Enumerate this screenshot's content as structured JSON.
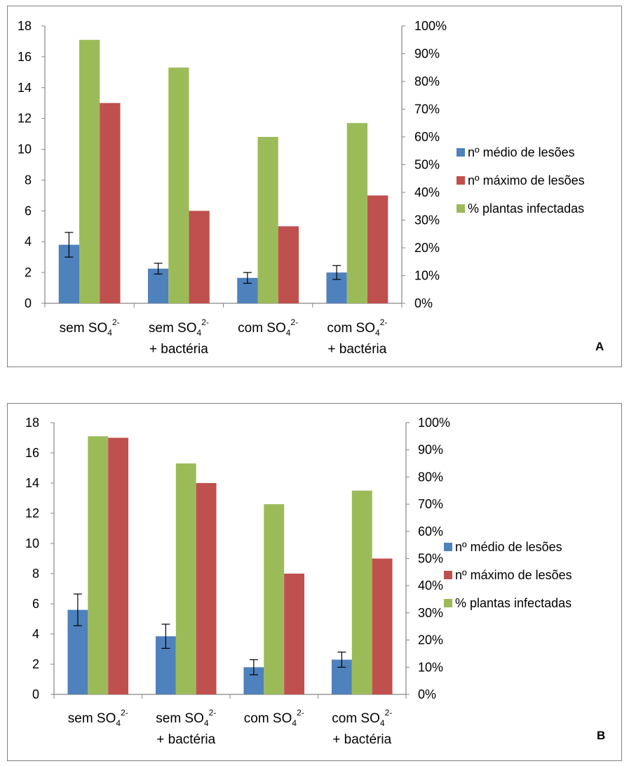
{
  "chart_data": [
    {
      "type": "bar",
      "panel_label": "A",
      "categories": [
        {
          "lines": [
            {
              "base": "sem SO",
              "sub": "4",
              "sup": "2-"
            }
          ]
        },
        {
          "lines": [
            {
              "base": "sem SO",
              "sub": "4",
              "sup": "2-"
            },
            {
              "base": "+ bactéria",
              "sub": "",
              "sup": ""
            }
          ]
        },
        {
          "lines": [
            {
              "base": "com SO",
              "sub": "4",
              "sup": "2-"
            }
          ]
        },
        {
          "lines": [
            {
              "base": "com SO",
              "sub": "4",
              "sup": "2-"
            },
            {
              "base": "+ bactéria",
              "sub": "",
              "sup": ""
            }
          ]
        }
      ],
      "series": [
        {
          "name": "nº médio de lesões",
          "axis": "left",
          "color": "#4f81bd",
          "values": [
            3.8,
            2.25,
            1.65,
            2.0
          ],
          "error": [
            0.8,
            0.35,
            0.35,
            0.45
          ]
        },
        {
          "name": "% plantas infectadas",
          "axis": "right",
          "color": "#9bbb59",
          "values": [
            95,
            85,
            60,
            65
          ]
        },
        {
          "name": "nº máximo de lesões",
          "axis": "left",
          "color": "#c0504d",
          "values": [
            13,
            6,
            5,
            7
          ]
        }
      ],
      "left_axis": {
        "min": 0,
        "max": 18,
        "ticks": [
          "0",
          "2",
          "4",
          "6",
          "8",
          "10",
          "12",
          "14",
          "16",
          "18"
        ]
      },
      "right_axis": {
        "min": 0,
        "max": 100,
        "ticks": [
          "0%",
          "10%",
          "20%",
          "30%",
          "40%",
          "50%",
          "60%",
          "70%",
          "80%",
          "90%",
          "100%"
        ]
      },
      "legend": [
        {
          "label": "nº médio de lesões",
          "color": "#4f81bd"
        },
        {
          "label": "nº máximo de lesões",
          "color": "#c0504d"
        },
        {
          "label": "% plantas infectadas",
          "color": "#9bbb59"
        }
      ],
      "legend_position": "right",
      "grid": false
    },
    {
      "type": "bar",
      "panel_label": "B",
      "categories": [
        {
          "lines": [
            {
              "base": "sem SO",
              "sub": "4",
              "sup": "2-"
            }
          ]
        },
        {
          "lines": [
            {
              "base": "sem SO",
              "sub": "4",
              "sup": "2-"
            },
            {
              "base": "+ bactéria",
              "sub": "",
              "sup": ""
            }
          ]
        },
        {
          "lines": [
            {
              "base": "com SO",
              "sub": "4",
              "sup": "2-"
            }
          ]
        },
        {
          "lines": [
            {
              "base": "com SO",
              "sub": "4",
              "sup": "2-"
            },
            {
              "base": "+ bactéria",
              "sub": "",
              "sup": ""
            }
          ]
        }
      ],
      "series": [
        {
          "name": "nº médio de lesões",
          "axis": "left",
          "color": "#4f81bd",
          "values": [
            5.6,
            3.85,
            1.8,
            2.3
          ],
          "error": [
            1.05,
            0.8,
            0.5,
            0.5
          ]
        },
        {
          "name": "% plantas infectadas",
          "axis": "right",
          "color": "#9bbb59",
          "values": [
            95,
            85,
            70,
            75
          ]
        },
        {
          "name": "nº máximo de lesões",
          "axis": "left",
          "color": "#c0504d",
          "values": [
            17,
            14,
            8,
            9
          ]
        }
      ],
      "left_axis": {
        "min": 0,
        "max": 18,
        "ticks": [
          "0",
          "2",
          "4",
          "6",
          "8",
          "10",
          "12",
          "14",
          "16",
          "18"
        ]
      },
      "right_axis": {
        "min": 0,
        "max": 100,
        "ticks": [
          "0%",
          "10%",
          "20%",
          "30%",
          "40%",
          "50%",
          "60%",
          "70%",
          "80%",
          "90%",
          "100%"
        ]
      },
      "legend": [
        {
          "label": "nº médio de lesões",
          "color": "#4f81bd"
        },
        {
          "label": "nº máximo de lesões",
          "color": "#c0504d"
        },
        {
          "label": "% plantas infectadas",
          "color": "#9bbb59"
        }
      ],
      "legend_position": "right",
      "grid": false
    }
  ]
}
